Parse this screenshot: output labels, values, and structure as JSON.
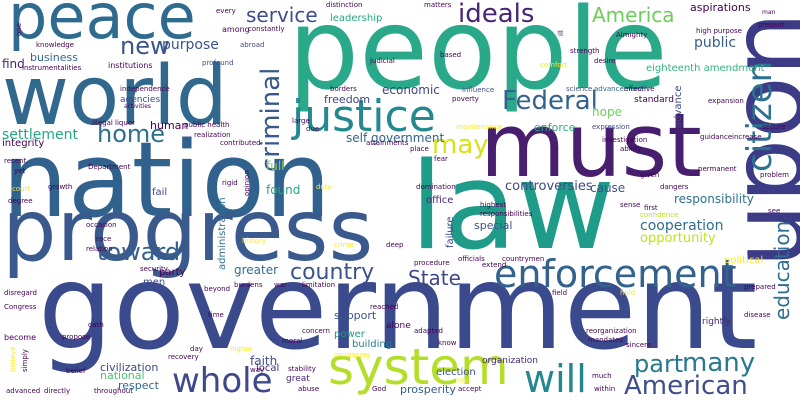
{
  "word_cloud": {
    "words": [
      {
        "text": "government",
        "color": "#3b4a8c"
      },
      {
        "text": "people",
        "color": "#2aa88a"
      },
      {
        "text": "law",
        "color": "#1e9c89"
      },
      {
        "text": "nation",
        "color": "#30628d"
      },
      {
        "text": "progress",
        "color": "#3a5a8e"
      },
      {
        "text": "upon",
        "color": "#3c3b86"
      },
      {
        "text": "must",
        "color": "#481e6f"
      },
      {
        "text": "world",
        "color": "#31688e"
      },
      {
        "text": "peace",
        "color": "#2f6b8e"
      },
      {
        "text": "justice",
        "color": "#23898e"
      },
      {
        "text": "system",
        "color": "#b5de2b"
      },
      {
        "text": "citizen",
        "color": "#2c728e"
      },
      {
        "text": "enforcement",
        "color": "#33638d"
      },
      {
        "text": "education",
        "color": "#2e6e8e"
      },
      {
        "text": "will",
        "color": "#24878e"
      },
      {
        "text": "whole",
        "color": "#3e4989"
      },
      {
        "text": "many",
        "color": "#2a788e"
      },
      {
        "text": "part",
        "color": "#29798e"
      },
      {
        "text": "American",
        "color": "#3d4e8a"
      },
      {
        "text": "criminal",
        "color": "#38598c"
      },
      {
        "text": "Federal",
        "color": "#33638d"
      },
      {
        "text": "country",
        "color": "#3b528b"
      },
      {
        "text": "State",
        "color": "#3f4788"
      },
      {
        "text": "toward",
        "color": "#355f8d"
      },
      {
        "text": "home",
        "color": "#2c718e"
      },
      {
        "text": "new",
        "color": "#3a548c"
      },
      {
        "text": "may",
        "color": "#d8e219"
      },
      {
        "text": "ideals",
        "color": "#482475"
      },
      {
        "text": "America",
        "color": "#6ccd5a"
      },
      {
        "text": "service",
        "color": "#3d4d8a"
      },
      {
        "text": "responsibility",
        "color": "#2d708e"
      },
      {
        "text": "cooperation",
        "color": "#2e6d8e"
      },
      {
        "text": "opportunity",
        "color": "#c2df23"
      },
      {
        "text": "controversies",
        "color": "#3e4989"
      },
      {
        "text": "economic",
        "color": "#414487"
      },
      {
        "text": "settlement",
        "color": "#22a785"
      },
      {
        "text": "purpose",
        "color": "#3b528b"
      },
      {
        "text": "public",
        "color": "#365c8d"
      },
      {
        "text": "business",
        "color": "#31688e"
      },
      {
        "text": "self government",
        "color": "#34618d"
      },
      {
        "text": "leadership",
        "color": "#22a785"
      },
      {
        "text": "aspirations",
        "color": "#440154"
      },
      {
        "text": "enforce",
        "color": "#27ad81"
      },
      {
        "text": "freedom",
        "color": "#414487"
      },
      {
        "text": "civilization",
        "color": "#3e4989"
      },
      {
        "text": "administration",
        "color": "#2c728e"
      },
      {
        "text": "greater",
        "color": "#2e6d8e"
      },
      {
        "text": "respect",
        "color": "#31688e"
      },
      {
        "text": "faith",
        "color": "#3e4c8a"
      },
      {
        "text": "support",
        "color": "#3b528b"
      },
      {
        "text": "prosperity",
        "color": "#365c8d"
      },
      {
        "text": "party",
        "color": "#440154"
      },
      {
        "text": "men",
        "color": "#3b528b"
      },
      {
        "text": "eighteenth amendment",
        "color": "#2fb47c"
      },
      {
        "text": "cause",
        "color": "#3b528b"
      },
      {
        "text": "hope",
        "color": "#6ece58"
      },
      {
        "text": "advance",
        "color": "#3e4989"
      },
      {
        "text": "find",
        "color": "#482475"
      },
      {
        "text": "integrity",
        "color": "#440154"
      },
      {
        "text": "human",
        "color": "#440154"
      },
      {
        "text": "political",
        "color": "#fde725"
      },
      {
        "text": "local",
        "color": "#472c7a"
      },
      {
        "text": "building",
        "color": "#287d8e"
      },
      {
        "text": "power",
        "color": "#1f988b"
      },
      {
        "text": "national",
        "color": "#4ac16d"
      },
      {
        "text": "organization",
        "color": "#482878"
      },
      {
        "text": "election",
        "color": "#3b528b"
      },
      {
        "text": "office",
        "color": "#482677"
      },
      {
        "text": "special",
        "color": "#3b528b"
      },
      {
        "text": "failure",
        "color": "#3e4989"
      },
      {
        "text": "full",
        "color": "#7ad151"
      },
      {
        "text": "found",
        "color": "#22a785"
      },
      {
        "text": "fail",
        "color": "#3e4989"
      },
      {
        "text": "rightly",
        "color": "#482475"
      },
      {
        "text": "great",
        "color": "#482677"
      },
      {
        "text": "alone",
        "color": "#440154"
      },
      {
        "text": "standard",
        "color": "#440154"
      },
      {
        "text": "agencies",
        "color": "#3e4989"
      },
      {
        "text": "institutions",
        "color": "#440154"
      },
      {
        "text": "independence",
        "color": "#440154"
      },
      {
        "text": "instrumentalities",
        "color": "#440154"
      },
      {
        "text": "among",
        "color": "#440154"
      },
      {
        "text": "abroad",
        "color": "#3e4989"
      },
      {
        "text": "constantly",
        "color": "#440154"
      },
      {
        "text": "profound",
        "color": "#3b528b"
      },
      {
        "text": "distinction",
        "color": "#440154"
      },
      {
        "text": "matters",
        "color": "#440154"
      },
      {
        "text": "every",
        "color": "#440154"
      },
      {
        "text": "judicial",
        "color": "#440154"
      },
      {
        "text": "borders",
        "color": "#440154"
      },
      {
        "text": "science",
        "color": "#3b528b"
      },
      {
        "text": "advancement",
        "color": "#31688e"
      },
      {
        "text": "influence",
        "color": "#3b528b"
      },
      {
        "text": "poverty",
        "color": "#440154"
      },
      {
        "text": "effective",
        "color": "#440154"
      },
      {
        "text": "desire",
        "color": "#440154"
      },
      {
        "text": "strength",
        "color": "#440154"
      },
      {
        "text": "Almighty",
        "color": "#440154"
      },
      {
        "text": "high purpose",
        "color": "#440154"
      },
      {
        "text": "present",
        "color": "#440154"
      },
      {
        "text": "man",
        "color": "#440154"
      },
      {
        "text": "expansion",
        "color": "#440154"
      },
      {
        "text": "secure",
        "color": "#440154"
      },
      {
        "text": "guidance",
        "color": "#440154"
      },
      {
        "text": "increase",
        "color": "#440154"
      },
      {
        "text": "expression",
        "color": "#3e4989"
      },
      {
        "text": "investigation",
        "color": "#440154"
      },
      {
        "text": "ability",
        "color": "#440154"
      },
      {
        "text": "problem",
        "color": "#440154"
      },
      {
        "text": "given",
        "color": "#440154"
      },
      {
        "text": "dangers",
        "color": "#440154"
      },
      {
        "text": "first",
        "color": "#440154"
      },
      {
        "text": "confidence",
        "color": "#bddf26"
      },
      {
        "text": "sense",
        "color": "#440154"
      },
      {
        "text": "permanent",
        "color": "#440154"
      },
      {
        "text": "see",
        "color": "#440154"
      },
      {
        "text": "prepared",
        "color": "#440154"
      },
      {
        "text": "disease",
        "color": "#440154"
      },
      {
        "text": "sincere",
        "color": "#440154"
      },
      {
        "text": "within",
        "color": "#440154"
      },
      {
        "text": "much",
        "color": "#440154"
      },
      {
        "text": "reorganization",
        "color": "#440154"
      },
      {
        "text": "mandates",
        "color": "#440154"
      },
      {
        "text": "hold",
        "color": "#fde725"
      },
      {
        "text": "field",
        "color": "#440154"
      },
      {
        "text": "extend",
        "color": "#440154"
      },
      {
        "text": "countrymen",
        "color": "#440154"
      },
      {
        "text": "officials",
        "color": "#440154"
      },
      {
        "text": "procedure",
        "color": "#440154"
      },
      {
        "text": "adapted",
        "color": "#440154"
      },
      {
        "text": "know",
        "color": "#440154"
      },
      {
        "text": "reached",
        "color": "#440154"
      },
      {
        "text": "increasing",
        "color": "#fde725"
      },
      {
        "text": "accept",
        "color": "#440154"
      },
      {
        "text": "life",
        "color": "#fde725"
      },
      {
        "text": "God",
        "color": "#440154"
      },
      {
        "text": "deep",
        "color": "#440154"
      },
      {
        "text": "crime",
        "color": "#fde725"
      },
      {
        "text": "limitation",
        "color": "#440154"
      },
      {
        "text": "burdens",
        "color": "#440154"
      },
      {
        "text": "war",
        "color": "#440154"
      },
      {
        "text": "concern",
        "color": "#440154"
      },
      {
        "text": "moral",
        "color": "#440154"
      },
      {
        "text": "stability",
        "color": "#440154"
      },
      {
        "text": "abuse",
        "color": "#440154"
      },
      {
        "text": "time",
        "color": "#440154"
      },
      {
        "text": "higher",
        "color": "#fde725"
      },
      {
        "text": "way",
        "color": "#440154"
      },
      {
        "text": "day",
        "color": "#440154"
      },
      {
        "text": "recovery",
        "color": "#440154"
      },
      {
        "text": "belief",
        "color": "#440154"
      },
      {
        "text": "throughout",
        "color": "#440154"
      },
      {
        "text": "directly",
        "color": "#440154"
      },
      {
        "text": "advanced",
        "color": "#440154"
      },
      {
        "text": "simply",
        "color": "#440154"
      },
      {
        "text": "believe",
        "color": "#fde725"
      },
      {
        "text": "become",
        "color": "#440154"
      },
      {
        "text": "propose",
        "color": "#440154"
      },
      {
        "text": "oath",
        "color": "#440154"
      },
      {
        "text": "Congress",
        "color": "#440154"
      },
      {
        "text": "disregard",
        "color": "#440154"
      },
      {
        "text": "beyond",
        "color": "#440154"
      },
      {
        "text": "security",
        "color": "#440154"
      },
      {
        "text": "relation",
        "color": "#440154"
      },
      {
        "text": "race",
        "color": "#440154"
      },
      {
        "text": "occasion",
        "color": "#440154"
      },
      {
        "text": "history",
        "color": "#fde725"
      },
      {
        "text": "duty",
        "color": "#fde725"
      },
      {
        "text": "rigid",
        "color": "#440154"
      },
      {
        "text": "opinion",
        "color": "#440154"
      },
      {
        "text": "domination",
        "color": "#440154"
      },
      {
        "text": "fear",
        "color": "#440154"
      },
      {
        "text": "place",
        "color": "#440154"
      },
      {
        "text": "attainments",
        "color": "#440154"
      },
      {
        "text": "due",
        "color": "#440154"
      },
      {
        "text": "large",
        "color": "#440154"
      },
      {
        "text": "contributed",
        "color": "#440154"
      },
      {
        "text": "public health",
        "color": "#440154"
      },
      {
        "text": "realization",
        "color": "#440154"
      },
      {
        "text": "illegal liquor",
        "color": "#440154"
      },
      {
        "text": "Department",
        "color": "#440154"
      },
      {
        "text": "growth",
        "color": "#440154"
      },
      {
        "text": "court",
        "color": "#fde725"
      },
      {
        "text": "degree",
        "color": "#440154"
      },
      {
        "text": "recent",
        "color": "#440154"
      },
      {
        "text": "yet",
        "color": "#440154"
      },
      {
        "text": "knowledge",
        "color": "#440154"
      },
      {
        "text": "one",
        "color": "#440154"
      },
      {
        "text": "activities",
        "color": "#440154"
      },
      {
        "text": "comfort",
        "color": "#fde725"
      },
      {
        "text": "based",
        "color": "#440154"
      },
      {
        "text": "ill",
        "color": "#440154"
      },
      {
        "text": "highest",
        "color": "#440154"
      },
      {
        "text": "responsibilities",
        "color": "#440154"
      },
      {
        "text": "maintenance",
        "color": "#fde725"
      }
    ]
  }
}
